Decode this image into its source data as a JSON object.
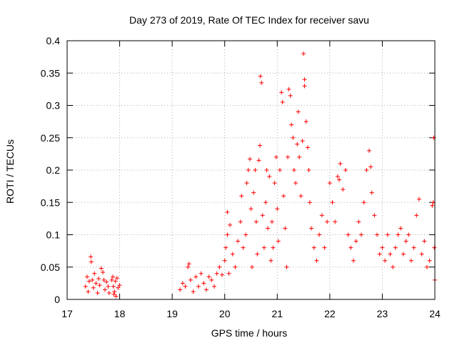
{
  "chart_data": {
    "type": "scatter",
    "title": "Day 273 of 2019, Rate Of TEC Index for receiver savu",
    "xlabel": "GPS time / hours",
    "ylabel": "ROTI / TECUs",
    "xlim": [
      17,
      24
    ],
    "ylim": [
      0,
      0.4
    ],
    "xticks": [
      17,
      18,
      19,
      20,
      21,
      22,
      23,
      24
    ],
    "xtick_labels": [
      "17",
      "18",
      "19",
      "20",
      "21",
      "22",
      "23",
      "24"
    ],
    "yticks": [
      0,
      0.05,
      0.1,
      0.15,
      0.2,
      0.25,
      0.3,
      0.35,
      0.4
    ],
    "ytick_labels": [
      "0",
      "0.05",
      "0.1",
      "0.15",
      "0.2",
      "0.25",
      "0.3",
      "0.35",
      "0.4"
    ],
    "grid": true,
    "marker": "plus",
    "color": "#ff0000",
    "series": [
      {
        "name": "ROTI",
        "points": [
          [
            17.35,
            0.02
          ],
          [
            17.38,
            0.035
          ],
          [
            17.4,
            0.012
          ],
          [
            17.42,
            0.028
          ],
          [
            17.45,
            0.066
          ],
          [
            17.46,
            0.058
          ],
          [
            17.48,
            0.03
          ],
          [
            17.5,
            0.018
          ],
          [
            17.52,
            0.04
          ],
          [
            17.55,
            0.025
          ],
          [
            17.58,
            0.01
          ],
          [
            17.6,
            0.032
          ],
          [
            17.62,
            0.022
          ],
          [
            17.65,
            0.048
          ],
          [
            17.68,
            0.042
          ],
          [
            17.7,
            0.03
          ],
          [
            17.72,
            0.015
          ],
          [
            17.75,
            0.027
          ],
          [
            17.78,
            0.02
          ],
          [
            17.8,
            0.01
          ],
          [
            17.85,
            0.03
          ],
          [
            17.87,
            0.035
          ],
          [
            17.88,
            0.02
          ],
          [
            17.9,
            0.012
          ],
          [
            17.92,
            0.028
          ],
          [
            17.95,
            0.033
          ],
          [
            17.97,
            0.018
          ],
          [
            18.0,
            0.022
          ],
          [
            17.93,
            0.005
          ],
          [
            17.89,
            0.008
          ],
          [
            19.15,
            0.015
          ],
          [
            19.2,
            0.025
          ],
          [
            19.25,
            0.02
          ],
          [
            19.3,
            0.05
          ],
          [
            19.32,
            0.055
          ],
          [
            19.35,
            0.03
          ],
          [
            19.4,
            0.012
          ],
          [
            19.45,
            0.035
          ],
          [
            19.5,
            0.02
          ],
          [
            19.55,
            0.04
          ],
          [
            19.6,
            0.025
          ],
          [
            19.65,
            0.015
          ],
          [
            19.7,
            0.035
          ],
          [
            19.75,
            0.03
          ],
          [
            19.8,
            0.02
          ],
          [
            19.85,
            0.04
          ],
          [
            19.9,
            0.05
          ],
          [
            19.95,
            0.038
          ],
          [
            20.0,
            0.06
          ],
          [
            20.02,
            0.08
          ],
          [
            20.05,
            0.1
          ],
          [
            20.05,
            0.135
          ],
          [
            20.08,
            0.04
          ],
          [
            20.1,
            0.115
          ],
          [
            20.15,
            0.07
          ],
          [
            20.2,
            0.05
          ],
          [
            20.25,
            0.09
          ],
          [
            20.3,
            0.12
          ],
          [
            20.32,
            0.16
          ],
          [
            20.35,
            0.08
          ],
          [
            20.4,
            0.1
          ],
          [
            20.42,
            0.18
          ],
          [
            20.45,
            0.2
          ],
          [
            20.48,
            0.217
          ],
          [
            20.5,
            0.14
          ],
          [
            20.52,
            0.05
          ],
          [
            20.55,
            0.165
          ],
          [
            20.58,
            0.2
          ],
          [
            20.6,
            0.12
          ],
          [
            20.62,
            0.07
          ],
          [
            20.65,
            0.215
          ],
          [
            20.67,
            0.238
          ],
          [
            20.68,
            0.345
          ],
          [
            20.7,
            0.335
          ],
          [
            20.72,
            0.13
          ],
          [
            20.75,
            0.08
          ],
          [
            20.78,
            0.15
          ],
          [
            20.8,
            0.2
          ],
          [
            20.82,
            0.11
          ],
          [
            20.85,
            0.19
          ],
          [
            20.88,
            0.06
          ],
          [
            20.9,
            0.12
          ],
          [
            20.92,
            0.08
          ],
          [
            20.95,
            0.18
          ],
          [
            20.98,
            0.22
          ],
          [
            21.0,
            0.14
          ],
          [
            21.02,
            0.09
          ],
          [
            21.05,
            0.2
          ],
          [
            21.08,
            0.32
          ],
          [
            21.1,
            0.305
          ],
          [
            21.12,
            0.16
          ],
          [
            21.15,
            0.11
          ],
          [
            21.18,
            0.05
          ],
          [
            21.2,
            0.22
          ],
          [
            21.22,
            0.325
          ],
          [
            21.25,
            0.315
          ],
          [
            21.27,
            0.27
          ],
          [
            21.3,
            0.25
          ],
          [
            21.32,
            0.2
          ],
          [
            21.35,
            0.18
          ],
          [
            21.38,
            0.24
          ],
          [
            21.4,
            0.29
          ],
          [
            21.42,
            0.22
          ],
          [
            21.45,
            0.16
          ],
          [
            21.48,
            0.245
          ],
          [
            21.5,
            0.38
          ],
          [
            21.52,
            0.34
          ],
          [
            21.52,
            0.33
          ],
          [
            21.55,
            0.275
          ],
          [
            21.58,
            0.235
          ],
          [
            21.6,
            0.2
          ],
          [
            21.62,
            0.15
          ],
          [
            21.65,
            0.11
          ],
          [
            21.7,
            0.08
          ],
          [
            21.75,
            0.06
          ],
          [
            21.8,
            0.1
          ],
          [
            21.85,
            0.13
          ],
          [
            21.9,
            0.08
          ],
          [
            21.95,
            0.12
          ],
          [
            22.0,
            0.18
          ],
          [
            22.05,
            0.15
          ],
          [
            22.1,
            0.12
          ],
          [
            22.15,
            0.19
          ],
          [
            22.18,
            0.185
          ],
          [
            22.2,
            0.21
          ],
          [
            22.25,
            0.17
          ],
          [
            22.3,
            0.2
          ],
          [
            22.35,
            0.1
          ],
          [
            22.4,
            0.08
          ],
          [
            22.45,
            0.06
          ],
          [
            22.5,
            0.09
          ],
          [
            22.55,
            0.12
          ],
          [
            22.6,
            0.1
          ],
          [
            22.65,
            0.15
          ],
          [
            22.7,
            0.2
          ],
          [
            22.75,
            0.23
          ],
          [
            22.78,
            0.205
          ],
          [
            22.8,
            0.165
          ],
          [
            22.85,
            0.13
          ],
          [
            22.9,
            0.1
          ],
          [
            22.95,
            0.07
          ],
          [
            23.0,
            0.08
          ],
          [
            23.05,
            0.06
          ],
          [
            23.1,
            0.1
          ],
          [
            23.15,
            0.07
          ],
          [
            23.2,
            0.05
          ],
          [
            23.25,
            0.08
          ],
          [
            23.3,
            0.1
          ],
          [
            23.35,
            0.11
          ],
          [
            23.4,
            0.07
          ],
          [
            23.45,
            0.09
          ],
          [
            23.5,
            0.1
          ],
          [
            23.55,
            0.06
          ],
          [
            23.6,
            0.08
          ],
          [
            23.65,
            0.13
          ],
          [
            23.7,
            0.155
          ],
          [
            23.75,
            0.07
          ],
          [
            23.8,
            0.09
          ],
          [
            23.85,
            0.05
          ],
          [
            23.9,
            0.06
          ],
          [
            23.95,
            0.145
          ],
          [
            23.97,
            0.15
          ],
          [
            23.98,
            0.25
          ],
          [
            23.99,
            0.08
          ],
          [
            24.0,
            0.03
          ]
        ]
      }
    ]
  }
}
